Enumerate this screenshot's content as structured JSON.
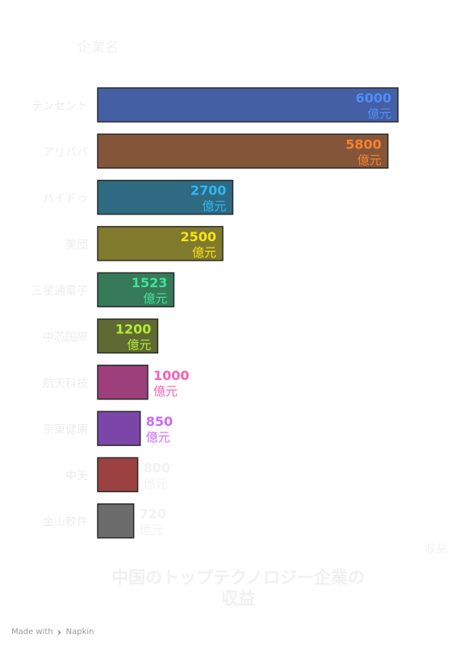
{
  "chart_data": {
    "type": "bar",
    "orientation": "horizontal",
    "title": "中国のトップテクノロジー企業の収益",
    "ylabel": "企業名",
    "xlabel": "収益",
    "unit": "億元",
    "xlim": [
      0,
      6000
    ],
    "grid": false,
    "legend": "none",
    "categories": [
      "テンセント",
      "アリババ",
      "バイドゥ",
      "美団",
      "三星通電子",
      "中芯国際",
      "航天科技",
      "京東健康",
      "中天",
      "金山軟件"
    ],
    "values": [
      6000,
      5800,
      2700,
      2500,
      1523,
      1200,
      1000,
      850,
      800,
      720
    ],
    "data_labels": [
      "6000",
      "5800",
      "2700",
      "2500",
      "1523",
      "1200",
      "1000",
      "850",
      "800",
      "720"
    ],
    "colors": [
      "#445FA3",
      "#85553A",
      "#2F6A83",
      "#7F7A2C",
      "#377A59",
      "#5F6A33",
      "#9C3F7B",
      "#7B46A8",
      "#9B4142",
      "#6C6C6C"
    ],
    "label_colors": [
      "#4F8EF6",
      "#F5822A",
      "#2FB7F2",
      "#F7E21B",
      "#3FE39D",
      "#B3EC37",
      "#F662B3",
      "#C96AF9",
      "#f2f2f2",
      "#f2f2f2"
    ]
  },
  "footer": {
    "text": "Made with",
    "brand": "Napkin",
    "icon": "napkin-logo-icon"
  }
}
